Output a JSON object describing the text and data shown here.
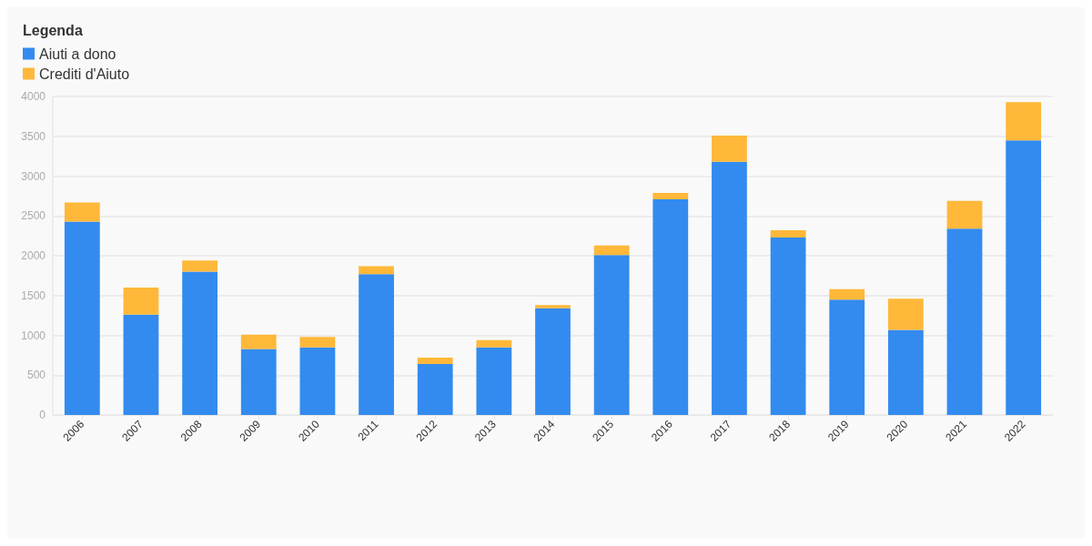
{
  "chart_data": {
    "type": "bar",
    "stacked": true,
    "legend_title": "Legenda",
    "legend": "top left",
    "grid": "y",
    "categories": [
      "2006",
      "2007",
      "2008",
      "2009",
      "2010",
      "2011",
      "2012",
      "2013",
      "2014",
      "2015",
      "2016",
      "2017",
      "2018",
      "2019",
      "2020",
      "2021",
      "2022"
    ],
    "series": [
      {
        "name": "Aiuti a dono",
        "color": "#338bef",
        "values": [
          2430,
          1260,
          1800,
          830,
          850,
          1770,
          640,
          850,
          1340,
          2010,
          2710,
          3180,
          2230,
          1450,
          1070,
          2340,
          3450
        ]
      },
      {
        "name": "Crediti d'Aiuto",
        "color": "#ffb839",
        "values": [
          240,
          340,
          140,
          180,
          130,
          100,
          80,
          90,
          40,
          120,
          80,
          330,
          90,
          130,
          390,
          350,
          480
        ]
      }
    ],
    "ylim": [
      0,
      4000
    ],
    "yticks": [
      0,
      500,
      1000,
      1500,
      2000,
      2500,
      3000,
      3500,
      4000
    ]
  }
}
